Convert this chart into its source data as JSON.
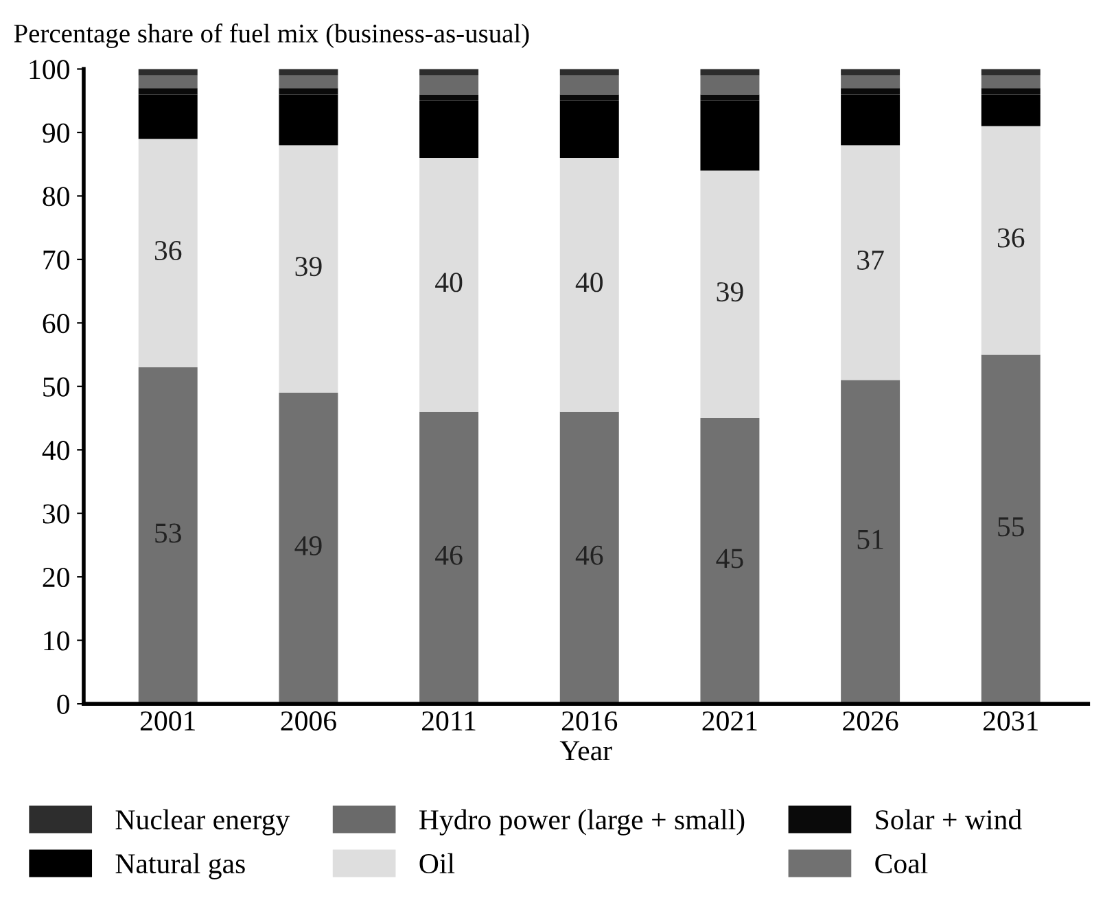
{
  "chart_data": {
    "type": "bar",
    "stacked": true,
    "title": "Percentage share of fuel mix (business-as-usual)",
    "xlabel": "Year",
    "categories": [
      "2001",
      "2006",
      "2011",
      "2016",
      "2021",
      "2026",
      "2031"
    ],
    "series": [
      {
        "name": "Coal",
        "color": "#717171",
        "values": [
          53,
          49,
          46,
          46,
          45,
          51,
          55
        ],
        "value_labels": [
          "53",
          "49",
          "46",
          "46",
          "45",
          "51",
          "55"
        ]
      },
      {
        "name": "Oil",
        "color": "#dedede",
        "values": [
          36,
          39,
          40,
          40,
          39,
          37,
          36
        ],
        "value_labels": [
          "36",
          "39",
          "40",
          "40",
          "39",
          "37",
          "36"
        ]
      },
      {
        "name": "Natural gas",
        "color": "#000000",
        "values": [
          7,
          8,
          9,
          9,
          11,
          8,
          5
        ]
      },
      {
        "name": "Solar + wind",
        "color": "#0a0a0a",
        "values": [
          1,
          1,
          1,
          1,
          1,
          1,
          1
        ]
      },
      {
        "name": "Hydro power (large + small)",
        "color": "#6a6a6a",
        "values": [
          2,
          2,
          3,
          3,
          3,
          2,
          2
        ]
      },
      {
        "name": "Nuclear energy",
        "color": "#2d2d2d",
        "values": [
          1,
          1,
          1,
          1,
          1,
          1,
          1
        ]
      }
    ],
    "ylim": [
      0,
      100
    ],
    "yticks": [
      0,
      10,
      20,
      30,
      40,
      50,
      60,
      70,
      80,
      90,
      100
    ],
    "grid": false,
    "legend": "bottom"
  }
}
